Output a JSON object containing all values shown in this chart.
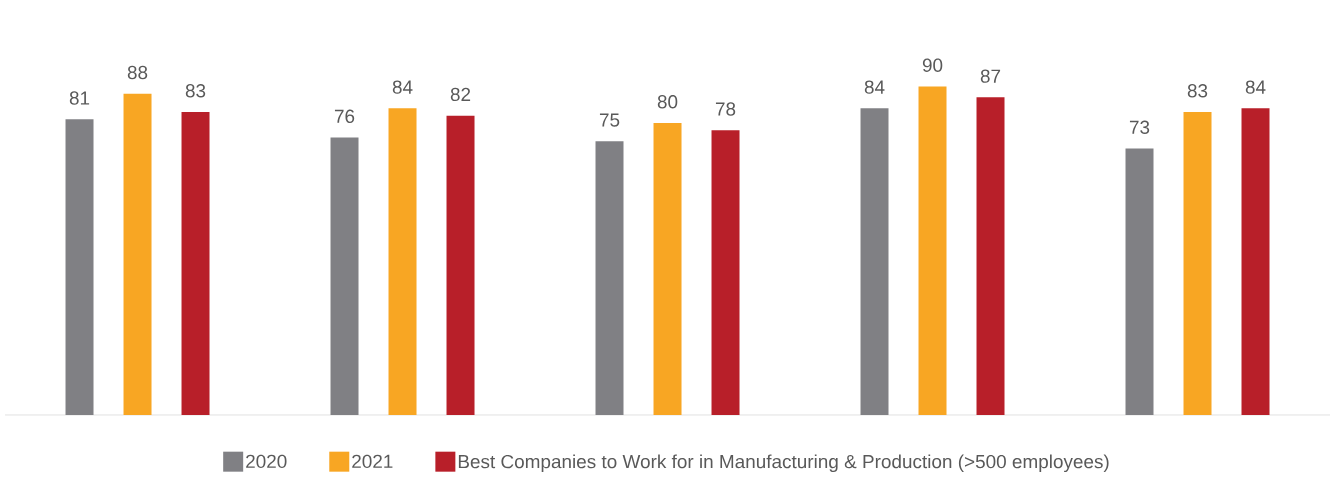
{
  "chart_data": {
    "type": "bar",
    "categories": [
      null,
      null,
      null,
      null,
      null
    ],
    "series": [
      {
        "name": "2020",
        "color": "#808084",
        "values": [
          81,
          76,
          75,
          84,
          73
        ]
      },
      {
        "name": "2021",
        "color": "#f8a623",
        "values": [
          88,
          84,
          80,
          90,
          83
        ]
      },
      {
        "name": "Best Companies to Work for in Manufacturing & Production (>500 employees)",
        "color": "#b81f29",
        "values": [
          83,
          82,
          78,
          87,
          84
        ]
      }
    ],
    "data_labels": true,
    "legend": "bottom"
  }
}
